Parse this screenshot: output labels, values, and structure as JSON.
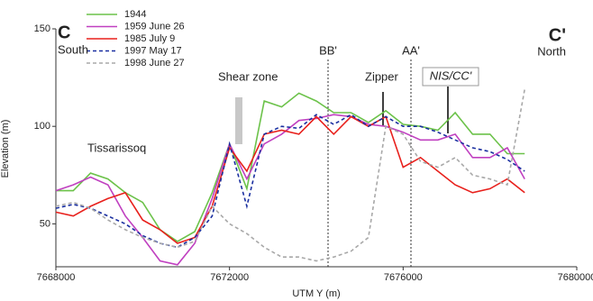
{
  "chart_data": {
    "type": "line",
    "xlabel": "UTM Y (m)",
    "ylabel": "Elevation (m)",
    "xlim": [
      7668000,
      7680000
    ],
    "xticks": [
      7668000,
      7672000,
      7676000,
      7680000
    ],
    "ylim": [
      28,
      150
    ],
    "yticks": [
      50,
      100,
      150
    ],
    "legend": "upper left",
    "x": [
      7668000,
      7668400,
      7668800,
      7669200,
      7669600,
      7670000,
      7670400,
      7670800,
      7671200,
      7671600,
      7672000,
      7672400,
      7672800,
      7673200,
      7673600,
      7674000,
      7674400,
      7674800,
      7675200,
      7675600,
      7676000,
      7676400,
      7676800,
      7677200,
      7677600,
      7678000,
      7678400,
      7678800
    ],
    "series": [
      {
        "name": "1944",
        "color": "#6cc24a",
        "style": "solid",
        "values": [
          67,
          67,
          76,
          73,
          66,
          61,
          47,
          41,
          46,
          66,
          91,
          68,
          113,
          110,
          117,
          113,
          107,
          107,
          102,
          108,
          101,
          100,
          98,
          107,
          96,
          96,
          86,
          86
        ]
      },
      {
        "name": "1959 June 26",
        "color": "#c040c0",
        "style": "solid",
        "values": [
          67,
          70,
          74,
          70,
          54,
          43,
          31,
          29,
          40,
          63,
          91,
          73,
          91,
          96,
          103,
          104,
          106,
          105,
          101,
          100,
          97,
          93,
          93,
          96,
          84,
          84,
          89,
          73
        ]
      },
      {
        "name": "1985 July 9",
        "color": "#e8201c",
        "style": "solid",
        "values": [
          56,
          54,
          59,
          63,
          66,
          52,
          47,
          40,
          43,
          59,
          89,
          77,
          96,
          98,
          96,
          105,
          96,
          105,
          100,
          105,
          79,
          84,
          77,
          70,
          66,
          68,
          73,
          66
        ]
      },
      {
        "name": "1997 May 17",
        "color": "#1a2fa0",
        "style": "dashed",
        "values": [
          58,
          60,
          58,
          54,
          50,
          44,
          40,
          38,
          43,
          54,
          91,
          59,
          96,
          100,
          99,
          106,
          101,
          106,
          100,
          105,
          100,
          100,
          97,
          93,
          89,
          87,
          83,
          77
        ]
      },
      {
        "name": "1998 June 27",
        "color": "#a8a8a8",
        "style": "dashed",
        "values": [
          59,
          61,
          58,
          52,
          47,
          43,
          40,
          38,
          41,
          59,
          50,
          45,
          38,
          33,
          33,
          31,
          33,
          36,
          43,
          100,
          96,
          82,
          79,
          84,
          75,
          73,
          70,
          119
        ]
      }
    ],
    "reference_lines": [
      {
        "x": 7674270,
        "label": "BB'"
      },
      {
        "x": 7676180,
        "label": "AA'"
      }
    ],
    "annotations": [
      "C",
      "South",
      "C'",
      "North",
      "Shear zone",
      "Tissarissoq",
      "Zipper",
      "NIS/CC'"
    ]
  }
}
